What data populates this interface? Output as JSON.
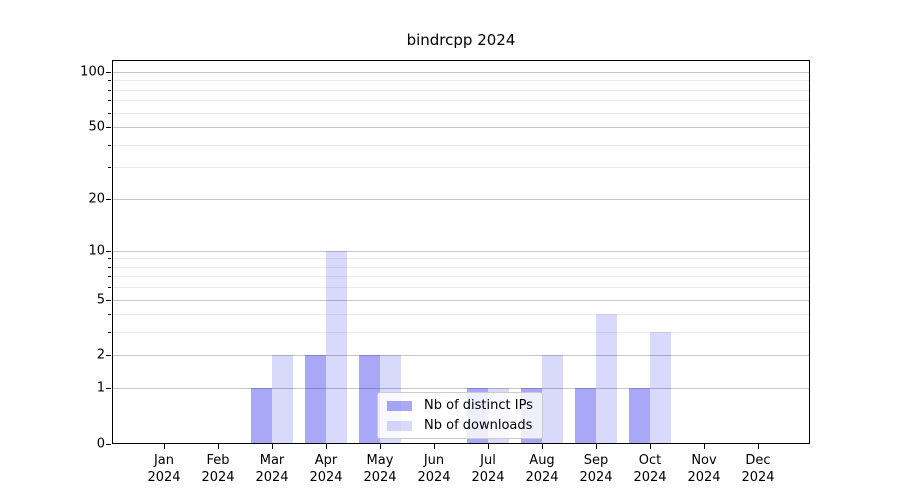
{
  "chart_data": {
    "type": "bar",
    "title": "bindrcpp 2024",
    "categories": [
      "Jan",
      "Feb",
      "Mar",
      "Apr",
      "May",
      "Jun",
      "Jul",
      "Aug",
      "Sep",
      "Oct",
      "Nov",
      "Dec"
    ],
    "x_tick_year": "2024",
    "series": [
      {
        "name": "Nb of distinct IPs",
        "color": "rgba(0,0,230,0.34)",
        "values": [
          0,
          0,
          1,
          2,
          2,
          0,
          1,
          1,
          1,
          1,
          0,
          0
        ]
      },
      {
        "name": "Nb of downloads",
        "color": "rgba(0,0,230,0.15)",
        "values": [
          0,
          0,
          2,
          10,
          2,
          0,
          1,
          2,
          4,
          3,
          0,
          0
        ]
      }
    ],
    "xlabel": "",
    "ylabel": "",
    "y_scale": "log1p",
    "ylim": [
      0,
      116
    ],
    "y_major_ticks": [
      0,
      1,
      2,
      5,
      10,
      20,
      50,
      100
    ],
    "y_tick_labels": [
      "0",
      "1",
      "2",
      "5",
      "10",
      "20",
      "50",
      "100"
    ],
    "y_minor_ticks": [
      3,
      4,
      6,
      7,
      8,
      9,
      30,
      40,
      60,
      70,
      80,
      90
    ],
    "grid": true,
    "legend_position": "lower center",
    "colors": {
      "grid_major": "#c6c6c6",
      "grid_minor": "#eaeaea",
      "axis": "#000000",
      "background": "#ffffff"
    }
  }
}
